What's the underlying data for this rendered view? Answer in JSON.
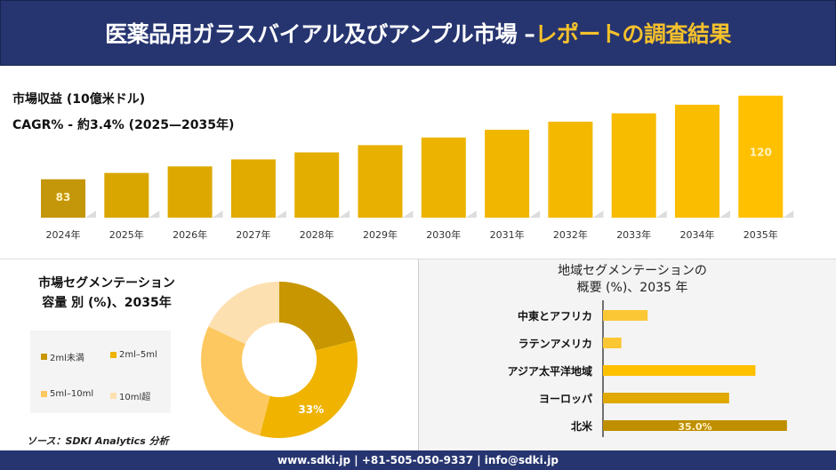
{
  "header": {
    "title_main": "医薬品用ガラスバイアル及びアンプル市場 –",
    "title_highlight": "レポートの調査結果"
  },
  "revenue_chart": {
    "heading": "市場収益 (10億米ドル)",
    "cagr": "CAGR% - 約3.4% (2025—2035年)"
  },
  "chart_data": [
    {
      "type": "bar",
      "categories": [
        "2024年",
        "2025年",
        "2026年",
        "2027年",
        "2028年",
        "2029年",
        "2030年",
        "2031年",
        "2032年",
        "2033年",
        "2034年",
        "2035年"
      ],
      "values": [
        83,
        85.8,
        88.7,
        91.8,
        94.9,
        98.1,
        101.5,
        104.9,
        108.5,
        112.2,
        116.0,
        120
      ],
      "data_labels": {
        "0": "83",
        "11": "120"
      },
      "ylim": [
        66,
        125
      ],
      "grid": false,
      "colors": [
        "#c4960a",
        "#ffc000"
      ]
    },
    {
      "type": "pie",
      "title": "市場セグメンテーション 容量 別 (%)、2035年",
      "title_lines": [
        "市場セグメンテーション",
        "容量 別 (%)、2035年"
      ],
      "categories": [
        "2ml未満",
        "2ml–5ml",
        "5ml–10ml",
        "10ml超"
      ],
      "values": [
        21,
        33,
        28,
        18
      ],
      "colors": [
        "#c89600",
        "#efb300",
        "#fec860",
        "#fde0b0"
      ],
      "data_labels": {
        "1": "33%"
      },
      "legend": "left",
      "donut": true
    },
    {
      "type": "bar",
      "orientation": "horizontal",
      "title": "地域セグメンテーションの 概要 (%)、2035 年",
      "title_lines": [
        "地域セグメンテーションの",
        "概要 (%)、2035 年"
      ],
      "categories": [
        "中東とアフリカ",
        "ラテンアメリカ",
        "アジア太平洋地域",
        "ヨーロッパ",
        "北米"
      ],
      "values": [
        8.5,
        3.5,
        29,
        24,
        35
      ],
      "colors": [
        "#fcc734",
        "#fcc734",
        "#ffc000",
        "#e0a800",
        "#bf8f00"
      ],
      "data_labels": {
        "4": "35.0%"
      }
    }
  ],
  "source": "ソース：SDKI Analytics 分析",
  "footer": "www.sdki.jp | +81-505-050-9337 | info@sdki.jp"
}
